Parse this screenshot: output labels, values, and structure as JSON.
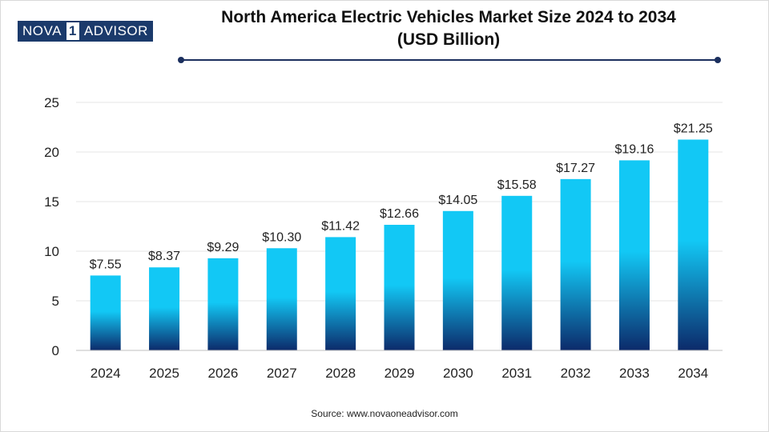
{
  "logo": {
    "part_a": "NOVA",
    "part_b": "1",
    "part_c": "ADVISOR"
  },
  "title_line1": "North America Electric Vehicles Market Size 2024 to 2034",
  "title_line2": "(USD Billion)",
  "source": "Source: www.novaoneadvisor.com",
  "colors": {
    "bar_top": "#12c8f5",
    "bar_bottom": "#0c2a6a",
    "accent": "#1b2f5e",
    "grid": "#e6e6e6"
  },
  "chart_data": {
    "type": "bar",
    "categories": [
      "2024",
      "2025",
      "2026",
      "2027",
      "2028",
      "2029",
      "2030",
      "2031",
      "2032",
      "2033",
      "2034"
    ],
    "values": [
      7.55,
      8.37,
      9.29,
      10.3,
      11.42,
      12.66,
      14.05,
      15.58,
      17.27,
      19.16,
      21.25
    ],
    "labels": [
      "$7.55",
      "$8.37",
      "$9.29",
      "$10.30",
      "$11.42",
      "$12.66",
      "$14.05",
      "$15.58",
      "$17.27",
      "$19.16",
      "$21.25"
    ],
    "y_ticks": [
      "0",
      "5",
      "10",
      "15",
      "20",
      "25"
    ],
    "ylim": [
      0,
      25
    ],
    "grid": true,
    "legend": "none"
  }
}
